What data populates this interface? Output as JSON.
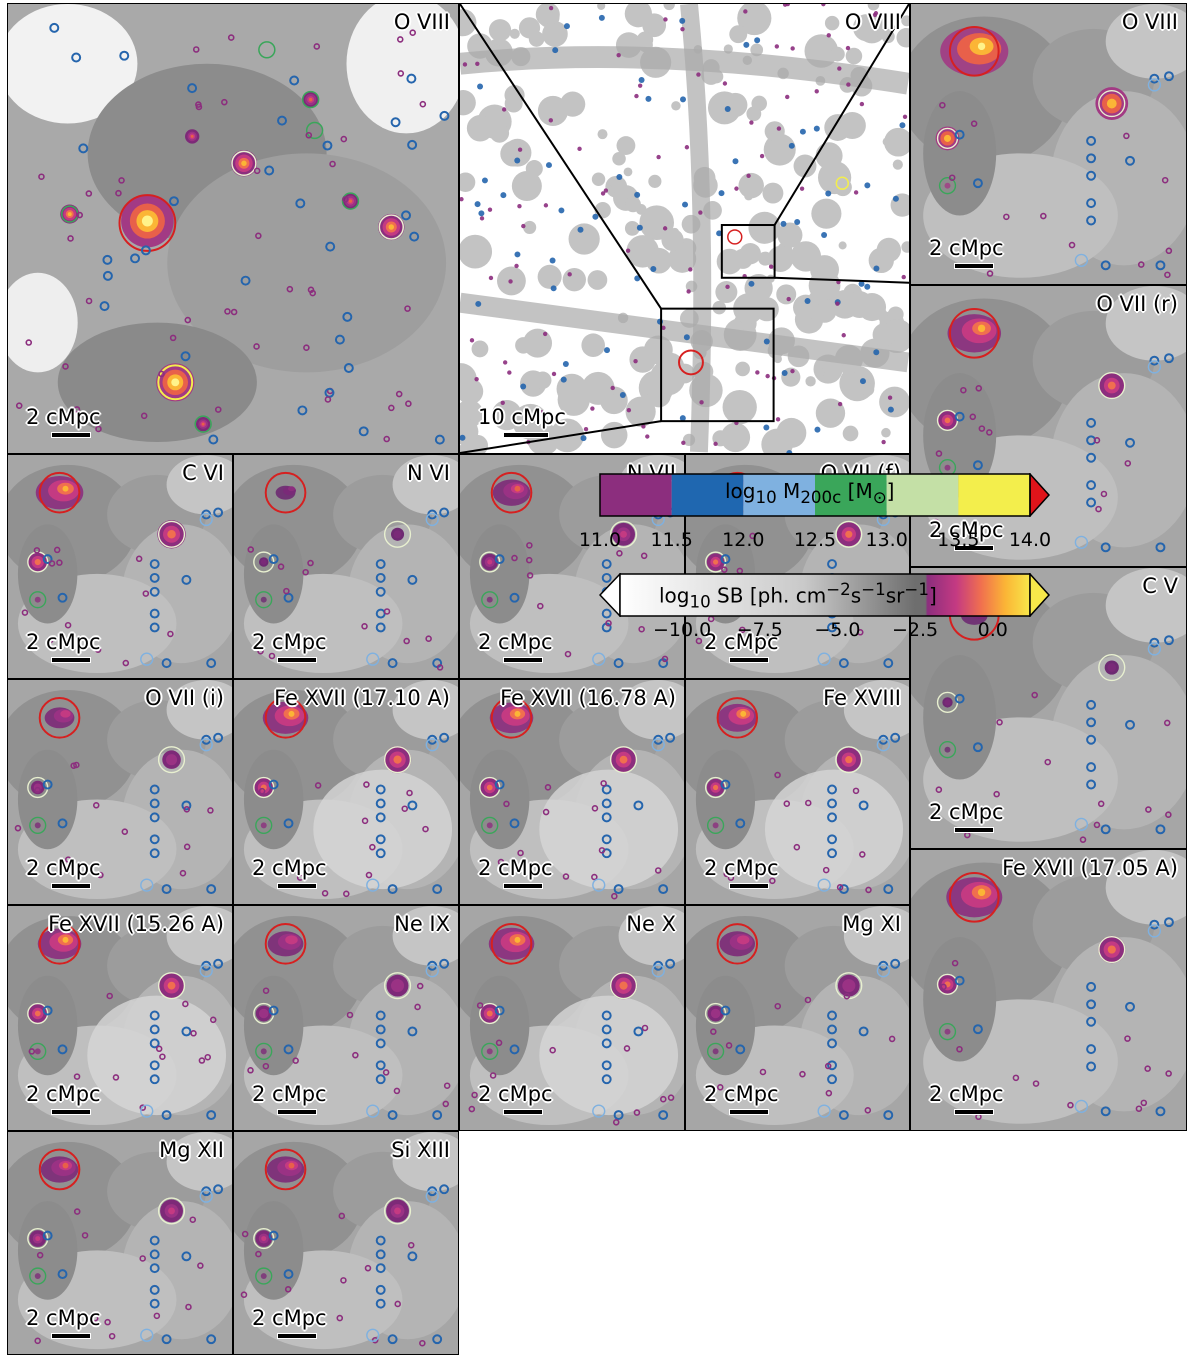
{
  "panels": [
    {
      "id": "ov8_big",
      "title": "O VIII",
      "scale": "2 cMpc"
    },
    {
      "id": "ov8_overview",
      "title": "O VIII",
      "scale": "10 cMpc"
    },
    {
      "id": "ov8_zoom",
      "title": "O VIII",
      "scale": "2 cMpc"
    },
    {
      "id": "ov7r",
      "title": "O VII (r)",
      "scale": "2 cMpc"
    },
    {
      "id": "c6",
      "title": "C VI",
      "scale": "2 cMpc"
    },
    {
      "id": "n6",
      "title": "N VI",
      "scale": "2 cMpc"
    },
    {
      "id": "n7",
      "title": "N VII",
      "scale": "2 cMpc"
    },
    {
      "id": "ov7f",
      "title": "O VII (f)",
      "scale": "2 cMpc"
    },
    {
      "id": "c5",
      "title": "C V",
      "scale": "2 cMpc"
    },
    {
      "id": "ov7i",
      "title": "O VII (i)",
      "scale": "2 cMpc"
    },
    {
      "id": "fe17_1710",
      "title": "Fe XVII (17.10 A)",
      "scale": "2 cMpc"
    },
    {
      "id": "fe17_1678",
      "title": "Fe XVII (16.78 A)",
      "scale": "2 cMpc"
    },
    {
      "id": "fe18",
      "title": "Fe XVIII",
      "scale": "2 cMpc"
    },
    {
      "id": "fe17_1705",
      "title": "Fe XVII (17.05 A)",
      "scale": "2 cMpc"
    },
    {
      "id": "fe17_1526",
      "title": "Fe XVII (15.26 A)",
      "scale": "2 cMpc"
    },
    {
      "id": "ne9",
      "title": "Ne IX",
      "scale": "2 cMpc"
    },
    {
      "id": "ne10",
      "title": "Ne X",
      "scale": "2 cMpc"
    },
    {
      "id": "mg11",
      "title": "Mg XI",
      "scale": "2 cMpc"
    },
    {
      "id": "mg12",
      "title": "Mg XII",
      "scale": "2 cMpc"
    },
    {
      "id": "si13",
      "title": "Si XIII",
      "scale": "2 cMpc"
    }
  ],
  "colorbar_mass": {
    "label_html": "log<sub>10</sub> M<sub>200c</sub> [M<sub>⊙</sub>]",
    "ticks": [
      "11.0",
      "11.5",
      "12.0",
      "12.5",
      "13.0",
      "13.5",
      "14.0"
    ],
    "bins": [
      {
        "from": 11.0,
        "to": 11.5,
        "color": "#8c2e7e"
      },
      {
        "from": 11.5,
        "to": 12.0,
        "color": "#1f67b0"
      },
      {
        "from": 12.0,
        "to": 12.5,
        "color": "#7fb1e0"
      },
      {
        "from": 12.5,
        "to": 13.0,
        "color": "#3aa65a"
      },
      {
        "from": 13.0,
        "to": 13.5,
        "color": "#c4e0a6"
      },
      {
        "from": 13.5,
        "to": 14.0,
        "color": "#f3ee4c"
      }
    ],
    "over_color": "#e0141a"
  },
  "colorbar_sb": {
    "label_html": "log<sub>10</sub> SB [ph. cm<sup>−2</sup>s<sup>−1</sup>sr<sup>−1</sup>]",
    "ticks": [
      "−10.0",
      "−7.5",
      "−5.0",
      "−2.5",
      "0.0"
    ],
    "tick_values": [
      -10.0,
      -7.5,
      -5.0,
      -2.5,
      0.0
    ],
    "range": [
      -12.0,
      1.2
    ]
  }
}
